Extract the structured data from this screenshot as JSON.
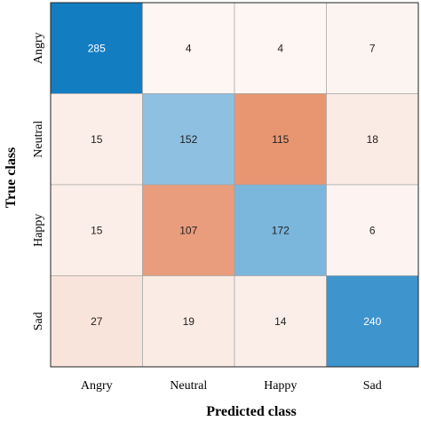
{
  "chart_data": {
    "type": "heatmap",
    "rows": [
      "Angry",
      "Neutral",
      "Happy",
      "Sad"
    ],
    "columns": [
      "Angry",
      "Neutral",
      "Happy",
      "Sad"
    ],
    "values": [
      [
        285,
        4,
        4,
        7
      ],
      [
        15,
        152,
        115,
        18
      ],
      [
        15,
        107,
        172,
        6
      ],
      [
        27,
        19,
        14,
        240
      ]
    ],
    "xlabel": "Predicted class",
    "ylabel": "True class",
    "colors": {
      "correct": "#0072BD",
      "incorrect": "#D95319",
      "background": "#ffffff",
      "grid": "#a0a0a0"
    }
  }
}
